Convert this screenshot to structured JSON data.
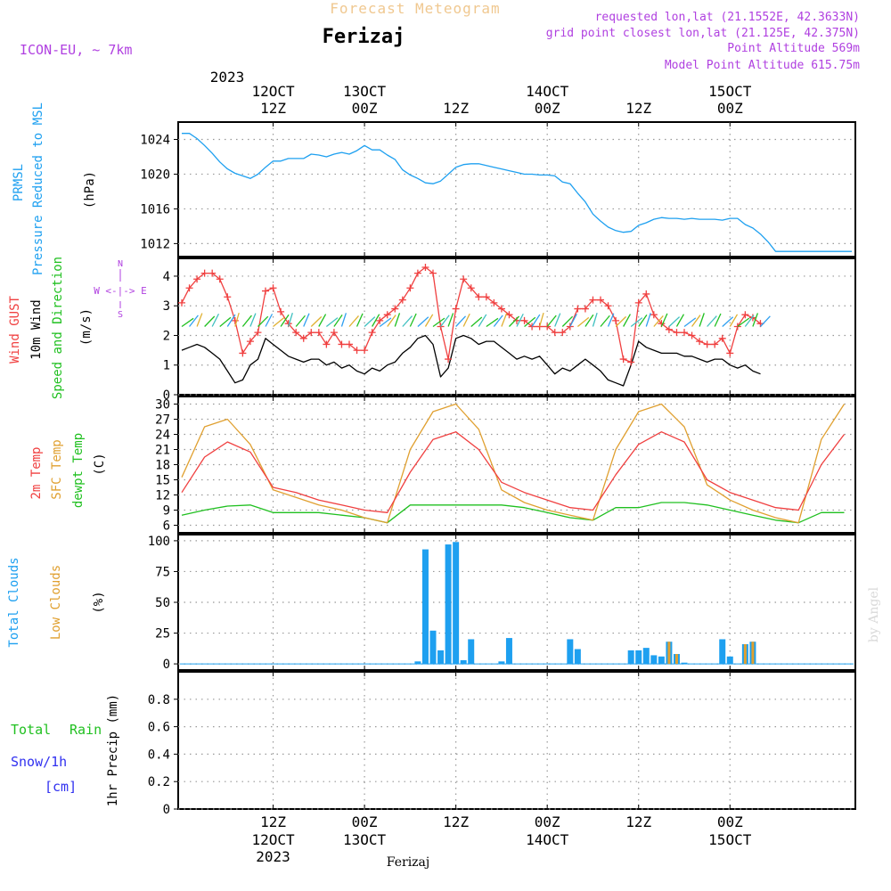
{
  "header": {
    "title": "Forecast Meteogram",
    "location": "Ferizaj",
    "model": "ICON-EU, ~ 7km",
    "requested": "requested lon,lat (21.1552E, 42.3633N)",
    "grid": "grid point closest lon,lat (21.125E, 42.375N)",
    "point_alt": "Point Altitude 569m",
    "model_alt": "Model Point Altitude 615.75m",
    "footer": "Ferizaj",
    "watermark": "by Angel"
  },
  "time_axis": {
    "top_year": "2023",
    "top_ticks": [
      {
        "l1": "12OCT",
        "l2": "12Z",
        "h": 12
      },
      {
        "l1": "13OCT",
        "l2": "00Z",
        "h": 24
      },
      {
        "l1": "",
        "l2": "12Z",
        "h": 36
      },
      {
        "l1": "14OCT",
        "l2": "00Z",
        "h": 48
      },
      {
        "l1": "",
        "l2": "12Z",
        "h": 60
      },
      {
        "l1": "15OCT",
        "l2": "00Z",
        "h": 72
      }
    ],
    "bottom_ticks": [
      {
        "l1": "12Z",
        "l2": "12OCT",
        "l3": "2023",
        "h": 12
      },
      {
        "l1": "00Z",
        "l2": "13OCT",
        "l3": "",
        "h": 24
      },
      {
        "l1": "12Z",
        "l2": "",
        "l3": "",
        "h": 36
      },
      {
        "l1": "00Z",
        "l2": "14OCT",
        "l3": "",
        "h": 48
      },
      {
        "l1": "12Z",
        "l2": "",
        "l3": "",
        "h": 60
      },
      {
        "l1": "00Z",
        "l2": "15OCT",
        "l3": "",
        "h": 72
      }
    ]
  },
  "labels": {
    "prmsl_1": "PRMSL",
    "prmsl_2": "Pressure Reduced to MSL",
    "prmsl_unit": "(hPa)",
    "wind_1": "Wind GUST",
    "wind_2": "10m Wind",
    "wind_3": "Speed and Direction",
    "wind_unit": "(m/s)",
    "compass": "W <-|-> E",
    "compass_n": "N",
    "compass_s": "S",
    "temp_1": "2m Temp",
    "temp_2": "SFC Temp",
    "temp_3": "dewpt Temp",
    "temp_unit": "(C)",
    "cloud_1": "Total Clouds",
    "cloud_2": "Low Clouds",
    "cloud_unit": "(%)",
    "precip_1": "Total",
    "precip_2": "Rain",
    "precip_3": "Snow/1h",
    "precip_4": "[cm]",
    "precip_axis": "1hr Precip (mm)"
  },
  "colors": {
    "pressure": "#1ea0f0",
    "gust": "#f04040",
    "wind": "#000000",
    "t2m": "#f04040",
    "sfc": "#e0a030",
    "dew": "#20c020",
    "total_clouds": "#1ea0f0",
    "low_clouds": "#e0a030",
    "rain": "#20c020",
    "snow": "#3030f0",
    "purple": "#b040e0"
  },
  "chart_data": [
    {
      "type": "line",
      "name": "PRMSL",
      "ylabel": "(hPa)",
      "ylim": [
        1010.5,
        1026
      ],
      "yticks": [
        "1024",
        "1020",
        "1016",
        "1012"
      ],
      "ytick_values": [
        1024,
        1020,
        1016,
        1012
      ],
      "x_hours": [
        0,
        1,
        2,
        3,
        4,
        5,
        6,
        7,
        8,
        9,
        10,
        11,
        12,
        13,
        14,
        15,
        16,
        17,
        18,
        19,
        20,
        21,
        22,
        23,
        24,
        25,
        26,
        27,
        28,
        29,
        30,
        31,
        32,
        33,
        34,
        35,
        36,
        37,
        38,
        39,
        40,
        41,
        42,
        43,
        44,
        45,
        46,
        47,
        48,
        49,
        50,
        51,
        52,
        53,
        54,
        55,
        56,
        57,
        58,
        59,
        60,
        61,
        62,
        63,
        64,
        65,
        66,
        67,
        68,
        69,
        70,
        71,
        72,
        73,
        74,
        75,
        76,
        77,
        78,
        79,
        80,
        81,
        82,
        83,
        84,
        85,
        86,
        87,
        88
      ],
      "series": [
        {
          "name": "PRMSL",
          "values": [
            1024.7,
            1024.7,
            1024.1,
            1023.3,
            1022.4,
            1021.4,
            1020.6,
            1020.1,
            1019.8,
            1019.5,
            1020.0,
            1020.8,
            1021.5,
            1021.5,
            1021.8,
            1021.8,
            1021.8,
            1022.3,
            1022.2,
            1022.0,
            1022.3,
            1022.5,
            1022.3,
            1022.7,
            1023.3,
            1022.8,
            1022.8,
            1022.2,
            1021.7,
            1020.5,
            1019.9,
            1019.5,
            1019.0,
            1018.9,
            1019.2,
            1020.0,
            1020.8,
            1021.1,
            1021.2,
            1021.2,
            1021.0,
            1020.8,
            1020.6,
            1020.4,
            1020.2,
            1020.0,
            1020.0,
            1019.9,
            1019.9,
            1019.8,
            1019.1,
            1018.9,
            1017.8,
            1016.8,
            1015.4,
            1014.6,
            1013.9,
            1013.5,
            1013.3,
            1013.4,
            1014.1,
            1014.4,
            1014.8,
            1015.0,
            1014.9,
            1014.9,
            1014.8,
            1014.9,
            1014.8,
            1014.8,
            1014.8,
            1014.7,
            1014.9,
            1014.9,
            1014.2,
            1013.8,
            1013.1,
            1012.2,
            1011.1,
            1011.1,
            1011.1,
            1011.1,
            1011.1,
            1011.1,
            1011.1,
            1011.1,
            1011.1,
            1011.1,
            1011.1
          ]
        }
      ]
    },
    {
      "type": "line",
      "name": "Wind",
      "ylabel": "(m/s)",
      "ylim": [
        0,
        4.6
      ],
      "yticks": [
        "4",
        "3",
        "2",
        "1",
        "0"
      ],
      "ytick_values": [
        4,
        3,
        2,
        1,
        0
      ],
      "x_hours": [
        0,
        1,
        2,
        3,
        4,
        5,
        6,
        7,
        8,
        9,
        10,
        11,
        12,
        13,
        14,
        15,
        16,
        17,
        18,
        19,
        20,
        21,
        22,
        23,
        24,
        25,
        26,
        27,
        28,
        29,
        30,
        31,
        32,
        33,
        34,
        35,
        36,
        37,
        38,
        39,
        40,
        41,
        42,
        43,
        44,
        45,
        46,
        47,
        48,
        49,
        50,
        51,
        52,
        53,
        54,
        55,
        56,
        57,
        58,
        59,
        60,
        61,
        62,
        63,
        64,
        65,
        66,
        67,
        68,
        69,
        70,
        71,
        72,
        73,
        74,
        75,
        76
      ],
      "series": [
        {
          "name": "Wind GUST",
          "values": [
            3.1,
            3.6,
            3.9,
            4.1,
            4.1,
            3.9,
            3.3,
            2.5,
            1.4,
            1.8,
            2.1,
            3.5,
            3.6,
            2.8,
            2.4,
            2.1,
            1.9,
            2.1,
            2.1,
            1.7,
            2.1,
            1.7,
            1.7,
            1.5,
            1.5,
            2.1,
            2.5,
            2.7,
            2.9,
            3.2,
            3.6,
            4.1,
            4.3,
            4.1,
            2.3,
            1.2,
            2.9,
            3.9,
            3.6,
            3.3,
            3.3,
            3.1,
            2.9,
            2.7,
            2.5,
            2.5,
            2.3,
            2.3,
            2.3,
            2.1,
            2.1,
            2.3,
            2.9,
            2.9,
            3.2,
            3.2,
            3.0,
            2.5,
            1.2,
            1.1,
            3.1,
            3.4,
            2.7,
            2.4,
            2.2,
            2.1,
            2.1,
            2.0,
            1.8,
            1.7,
            1.7,
            1.9,
            1.4,
            2.3,
            2.7,
            2.6,
            2.4
          ]
        },
        {
          "name": "10m Wind",
          "values": [
            1.5,
            1.6,
            1.7,
            1.6,
            1.4,
            1.2,
            0.8,
            0.4,
            0.5,
            1.0,
            1.2,
            1.9,
            1.7,
            1.5,
            1.3,
            1.2,
            1.1,
            1.2,
            1.2,
            1.0,
            1.1,
            0.9,
            1.0,
            0.8,
            0.7,
            0.9,
            0.8,
            1.0,
            1.1,
            1.4,
            1.6,
            1.9,
            2.0,
            1.7,
            0.6,
            0.9,
            1.9,
            2.0,
            1.9,
            1.7,
            1.8,
            1.8,
            1.6,
            1.4,
            1.2,
            1.3,
            1.2,
            1.3,
            1.0,
            0.7,
            0.9,
            0.8,
            1.0,
            1.2,
            1.0,
            0.8,
            0.5,
            0.4,
            0.3,
            1.0,
            1.8,
            1.6,
            1.5,
            1.4,
            1.4,
            1.4,
            1.3,
            1.3,
            1.2,
            1.1,
            1.2,
            1.2,
            1.0,
            0.9,
            1.0,
            0.8,
            0.7
          ]
        }
      ]
    },
    {
      "type": "line",
      "name": "Temperature",
      "ylabel": "(C)",
      "ylim": [
        4.5,
        31.5
      ],
      "yticks": [
        "30",
        "27",
        "24",
        "21",
        "18",
        "15",
        "12",
        "9",
        "6"
      ],
      "ytick_values": [
        30,
        27,
        24,
        21,
        18,
        15,
        12,
        9,
        6
      ],
      "x_hours": [
        0,
        3,
        6,
        9,
        12,
        15,
        18,
        21,
        24,
        27,
        30,
        33,
        36,
        39,
        42,
        45,
        48,
        51,
        54,
        57,
        60,
        63,
        66,
        69,
        72,
        75,
        78,
        81,
        84,
        87
      ],
      "series": [
        {
          "name": "2m Temp",
          "values": [
            12.5,
            19.5,
            22.5,
            20.5,
            13.5,
            12.5,
            11.0,
            10.0,
            9.0,
            8.5,
            16.5,
            23.0,
            24.5,
            21.0,
            14.5,
            12.5,
            11.0,
            9.5,
            9.0,
            16.0,
            22.0,
            24.5,
            22.5,
            15.0,
            12.5,
            11.0,
            9.5,
            9.0,
            18.0,
            24.0
          ]
        },
        {
          "name": "SFC Temp",
          "values": [
            15.5,
            25.5,
            27.0,
            22.0,
            13.0,
            11.5,
            10.0,
            9.0,
            7.5,
            6.5,
            21.0,
            28.5,
            30.0,
            25.0,
            13.0,
            10.5,
            9.0,
            8.0,
            7.0,
            21.0,
            28.5,
            30.0,
            25.5,
            14.0,
            11.0,
            9.0,
            7.5,
            6.5,
            23.0,
            30.0
          ]
        },
        {
          "name": "dewpt Temp",
          "values": [
            8.0,
            9.0,
            9.8,
            10.0,
            8.5,
            8.5,
            8.5,
            8.0,
            7.5,
            6.5,
            10.0,
            10.0,
            10.0,
            10.0,
            10.0,
            9.5,
            8.5,
            7.5,
            7.0,
            9.5,
            9.5,
            10.5,
            10.5,
            10.0,
            9.0,
            8.0,
            7.0,
            6.5,
            8.5,
            8.5
          ]
        }
      ]
    },
    {
      "type": "bar",
      "name": "Clouds",
      "ylabel": "(%)",
      "ylim": [
        -5,
        105
      ],
      "yticks": [
        "100",
        "75",
        "50",
        "25",
        "0"
      ],
      "ytick_values": [
        100,
        75,
        50,
        25,
        0
      ],
      "x_hours": [
        31,
        32,
        33,
        34,
        35,
        36,
        37,
        38,
        42,
        43,
        51,
        52,
        59,
        60,
        61,
        62,
        63,
        64,
        65,
        66,
        71,
        72,
        74,
        75
      ],
      "series": [
        {
          "name": "Total Clouds",
          "values": [
            2,
            93,
            27,
            11,
            97,
            99,
            3,
            20,
            2,
            21,
            20,
            12,
            11,
            11,
            13,
            7,
            6,
            18,
            8,
            1,
            20,
            6,
            16,
            18
          ]
        },
        {
          "name": "Low Clouds",
          "values": [
            0,
            0,
            0,
            0,
            0,
            0,
            0,
            0,
            0,
            0,
            0,
            0,
            0,
            0,
            0,
            0,
            0,
            18,
            8,
            0,
            0,
            0,
            16,
            18
          ]
        }
      ]
    },
    {
      "type": "bar",
      "name": "Precipitation",
      "ylabel": "1hr Precip (mm)",
      "ylim": [
        0,
        1
      ],
      "yticks": [
        "0.8",
        "0.6",
        "0.4",
        "0.2",
        "0"
      ],
      "ytick_values": [
        0.8,
        0.6,
        0.4,
        0.2,
        0
      ],
      "series": [
        {
          "name": "Total Rain",
          "values": []
        },
        {
          "name": "Snow/1h",
          "values": []
        }
      ]
    }
  ]
}
